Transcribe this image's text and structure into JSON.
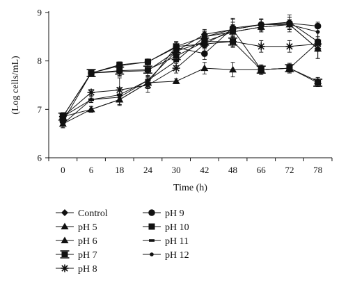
{
  "chart_data": {
    "type": "line",
    "title": "",
    "xlabel": "Time (h)",
    "ylabel": "(Log cells/mL)",
    "categories": [
      "0",
      "6",
      "18",
      "24",
      "30",
      "42",
      "48",
      "66",
      "72",
      "78"
    ],
    "ylim": [
      6,
      9
    ],
    "yticks": [
      6,
      7,
      8,
      9
    ],
    "grid": false,
    "legend_position": "bottom",
    "series": [
      {
        "name": "Control",
        "marker": "diamond",
        "values": [
          6.85,
          7.75,
          7.78,
          7.8,
          8.2,
          8.55,
          8.65,
          8.75,
          8.75,
          8.25
        ],
        "errors": [
          0.08,
          0.05,
          0.1,
          0.12,
          0.15,
          0.1,
          0.15,
          0.1,
          0.1,
          0.2
        ]
      },
      {
        "name": "pH 5",
        "marker": "triangle",
        "values": [
          6.85,
          7.0,
          7.2,
          7.55,
          7.58,
          7.85,
          7.82,
          7.82,
          7.85,
          7.58
        ],
        "errors": [
          0.08,
          0.06,
          0.1,
          0.12,
          0.05,
          0.12,
          0.15,
          0.08,
          0.1,
          0.08
        ]
      },
      {
        "name": "pH 6",
        "marker": "triangle",
        "values": [
          6.7,
          7.0,
          7.2,
          7.55,
          8.3,
          8.5,
          8.6,
          8.7,
          8.75,
          8.25
        ],
        "errors": [
          0.08,
          0.06,
          0.12,
          0.12,
          0.1,
          0.1,
          0.12,
          0.1,
          0.1,
          0.2
        ]
      },
      {
        "name": "pH 7",
        "marker": "square-bar",
        "values": [
          6.85,
          7.75,
          7.8,
          7.82,
          8.1,
          8.4,
          8.4,
          7.82,
          7.85,
          7.55
        ],
        "errors": [
          0.08,
          0.05,
          0.1,
          0.12,
          0.1,
          0.1,
          0.12,
          0.08,
          0.08,
          0.08
        ]
      },
      {
        "name": "pH 8",
        "marker": "star",
        "values": [
          6.85,
          7.35,
          7.4,
          7.5,
          7.85,
          8.35,
          8.4,
          8.3,
          8.3,
          8.35
        ],
        "errors": [
          0.08,
          0.06,
          0.25,
          0.15,
          0.1,
          0.1,
          0.1,
          0.12,
          0.12,
          0.1
        ]
      },
      {
        "name": "pH 9",
        "marker": "circle",
        "values": [
          6.75,
          7.75,
          7.9,
          7.98,
          8.28,
          8.15,
          8.68,
          8.75,
          8.78,
          8.72
        ],
        "errors": [
          0.1,
          0.05,
          0.08,
          0.06,
          0.1,
          0.12,
          0.2,
          0.12,
          0.12,
          0.05
        ]
      },
      {
        "name": "pH 10",
        "marker": "square",
        "values": [
          6.85,
          7.75,
          7.92,
          7.98,
          8.3,
          8.35,
          8.65,
          7.82,
          7.85,
          8.38
        ],
        "errors": [
          0.08,
          0.05,
          0.06,
          0.06,
          0.1,
          0.15,
          0.2,
          0.1,
          0.1,
          0.12
        ]
      },
      {
        "name": "pH 11",
        "marker": "dash",
        "values": [
          6.85,
          7.2,
          7.3,
          7.6,
          8.0,
          8.5,
          8.65,
          8.75,
          8.8,
          8.4
        ],
        "errors": [
          0.08,
          0.06,
          0.15,
          0.15,
          0.1,
          0.12,
          0.15,
          0.1,
          0.15,
          0.2
        ]
      },
      {
        "name": "pH 12",
        "marker": "small-circle",
        "values": [
          6.7,
          7.2,
          7.25,
          7.6,
          8.2,
          8.4,
          8.6,
          8.7,
          8.75,
          8.6
        ],
        "errors": [
          0.08,
          0.06,
          0.15,
          0.15,
          0.1,
          0.12,
          0.15,
          0.1,
          0.15,
          0.2
        ]
      }
    ]
  }
}
